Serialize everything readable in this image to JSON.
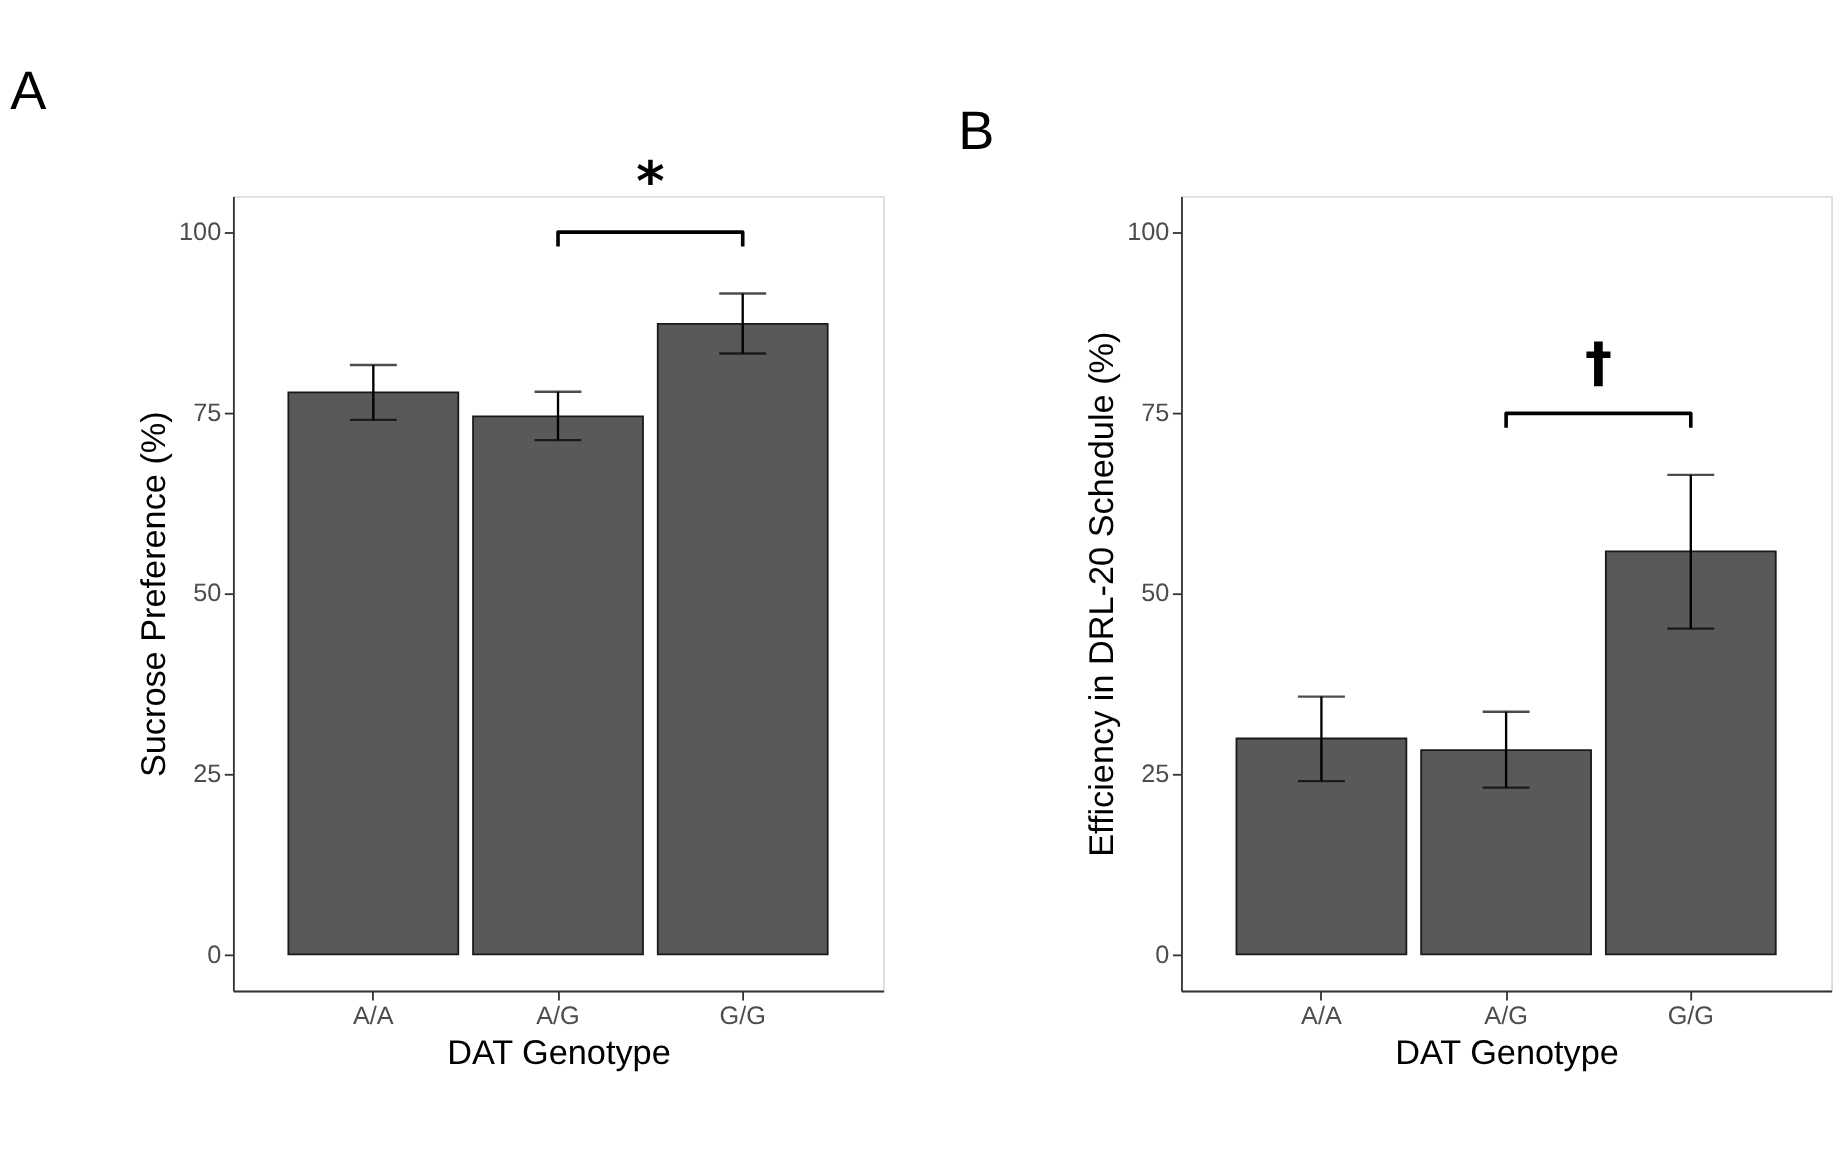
{
  "chart_data": [
    {
      "type": "bar",
      "title": "A",
      "xlabel": "DAT Genotype",
      "ylabel": "Sucrose Preference (%)",
      "categories": [
        "A/A",
        "A/G",
        "G/G"
      ],
      "values": [
        77.8,
        74.5,
        87.3
      ],
      "errors": [
        [
          74.0,
          81.6
        ],
        [
          71.2,
          77.9
        ],
        [
          83.2,
          91.5
        ]
      ],
      "color": "#595959",
      "ylim": [
        -5,
        105
      ],
      "yticks": [
        0,
        25,
        50,
        75,
        100
      ],
      "grid": false,
      "annotations": [
        "*"
      ]
    },
    {
      "type": "bar",
      "title": "B",
      "xlabel": "DAT Genotype",
      "ylabel": "Efficiency in DRL-20 Schedule (%)",
      "categories": [
        "A/A",
        "A/G",
        "G/G"
      ],
      "values": [
        29.9,
        28.3,
        55.8
      ],
      "errors": [
        [
          24.0,
          35.7
        ],
        [
          23.1,
          33.6
        ],
        [
          45.1,
          66.4
        ]
      ],
      "color": "#595959",
      "ylim": [
        -5,
        105
      ],
      "yticks": [
        0,
        25,
        50,
        75,
        100
      ],
      "grid": false,
      "annotations": [
        "†"
      ]
    }
  ]
}
